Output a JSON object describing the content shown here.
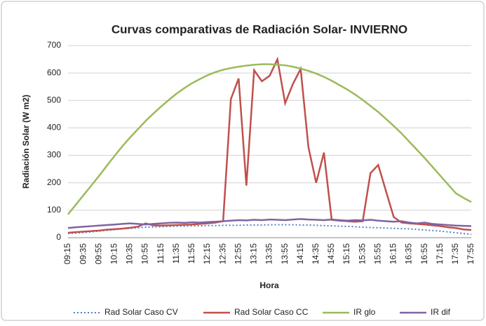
{
  "chart_data": {
    "type": "line",
    "title": "Curvas comparativas de Radiación Solar- INVIERNO",
    "y_label": "Radiación Solar (W m2)",
    "x_label": "Hora",
    "categories": [
      "09:15",
      null,
      "09:35",
      null,
      "09:55",
      null,
      "10:15",
      null,
      "10:35",
      null,
      "10:55",
      null,
      "11:15",
      null,
      "11:35",
      null,
      "11:55",
      null,
      "12:15",
      null,
      "12:35",
      null,
      "12:55",
      null,
      "13:15",
      null,
      "13:35",
      null,
      "13:55",
      null,
      "14:15",
      null,
      "14:35",
      null,
      "14:55",
      null,
      "15:15",
      null,
      "15:35",
      null,
      "15:55",
      null,
      "16:15",
      null,
      "16:35",
      null,
      "16:55",
      null,
      "17:15",
      null,
      "17:35",
      null,
      "17:55"
    ],
    "ylim": [
      0,
      700
    ],
    "yticks": [
      0,
      100,
      200,
      300,
      400,
      500,
      600,
      700
    ],
    "grid": true,
    "legend": "bottom",
    "series": [
      {
        "name": "Rad Solar Caso CV",
        "color": "#4f81bd",
        "style": "dotted",
        "values": [
          15,
          17,
          19,
          21,
          24,
          27,
          29,
          32,
          34,
          36,
          38,
          39,
          40,
          41,
          42,
          42,
          43,
          43,
          44,
          44,
          45,
          45,
          45,
          46,
          46,
          46,
          47,
          47,
          47,
          47,
          46,
          46,
          45,
          44,
          43,
          42,
          41,
          40,
          38,
          37,
          36,
          35,
          34,
          33,
          32,
          30,
          28,
          26,
          24,
          21,
          18,
          15,
          12
        ]
      },
      {
        "name": "Rad Solar Caso CC",
        "color": "#c0504d",
        "style": "solid",
        "values": [
          18,
          20,
          22,
          24,
          26,
          29,
          31,
          33,
          36,
          40,
          52,
          45,
          44,
          45,
          46,
          47,
          48,
          50,
          52,
          55,
          60,
          505,
          580,
          190,
          610,
          570,
          590,
          650,
          490,
          560,
          615,
          330,
          200,
          310,
          65,
          62,
          60,
          58,
          60,
          235,
          265,
          170,
          75,
          55,
          52,
          50,
          48,
          45,
          42,
          38,
          35,
          30,
          28
        ]
      },
      {
        "name": "IR glo",
        "color": "#9bbb59",
        "style": "solid",
        "values": [
          85,
          120,
          155,
          190,
          225,
          262,
          298,
          333,
          365,
          395,
          425,
          452,
          478,
          502,
          525,
          545,
          563,
          578,
          592,
          603,
          612,
          618,
          623,
          627,
          630,
          632,
          632,
          630,
          628,
          623,
          616,
          608,
          598,
          586,
          572,
          556,
          540,
          522,
          502,
          480,
          458,
          433,
          407,
          380,
          350,
          320,
          290,
          258,
          226,
          194,
          162,
          145,
          130
        ]
      },
      {
        "name": "IR dif",
        "color": "#8064a2",
        "style": "solid",
        "values": [
          35,
          38,
          40,
          42,
          44,
          46,
          48,
          50,
          52,
          50,
          48,
          50,
          52,
          54,
          55,
          54,
          56,
          55,
          57,
          58,
          60,
          62,
          64,
          63,
          65,
          64,
          66,
          65,
          64,
          66,
          68,
          66,
          65,
          64,
          66,
          64,
          62,
          64,
          63,
          65,
          62,
          60,
          58,
          60,
          55,
          52,
          55,
          50,
          48,
          46,
          44,
          43,
          42
        ]
      }
    ]
  }
}
